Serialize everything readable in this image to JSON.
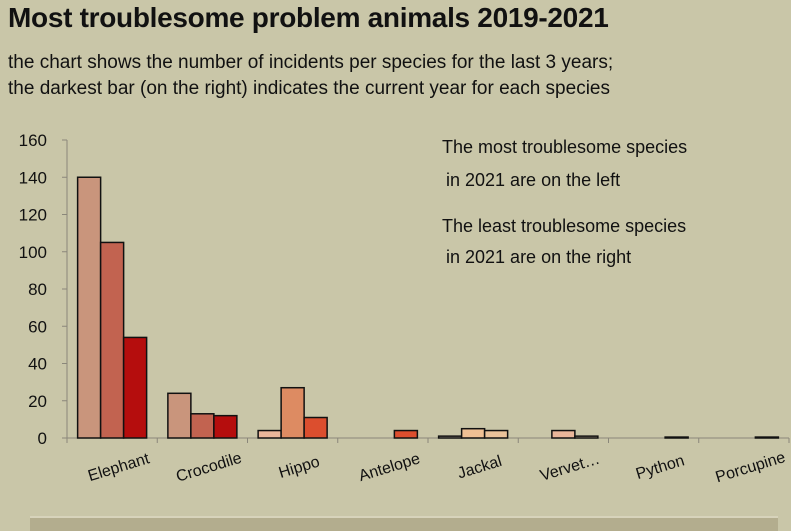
{
  "title": "Most troublesome problem animals 2019-2021",
  "subtitle_line1": "the chart shows the number of incidents per species for the last 3 years;",
  "subtitle_line2": "the darkest bar (on the right) indicates the current year for each species",
  "annotations": [
    {
      "line1": "The most troublesome species",
      "line2": "in 2021 are on the left"
    },
    {
      "line1": "The least troublesome species",
      "line2": "in 2021 are on the right"
    }
  ],
  "chart_data": {
    "type": "bar",
    "categories": [
      "Elephant",
      "Crocodile",
      "Hippo",
      "Antelope",
      "Jackal",
      "Vervet…",
      "Python",
      "Porcupine"
    ],
    "series": [
      {
        "values": [
          140,
          24,
          4,
          0,
          1,
          0,
          0,
          0
        ],
        "color": "#c9957c"
      },
      {
        "values": [
          105,
          13,
          27,
          0,
          5,
          4,
          0,
          0
        ],
        "color": "#c26350"
      },
      {
        "values": [
          54,
          12,
          11,
          4,
          4,
          1,
          0.5,
          0.5
        ],
        "color": "#b50d0d"
      }
    ],
    "series_colors_by_category": [
      [
        "#c9957c",
        "#c26350",
        "#b50d0d"
      ],
      [
        "#c9957c",
        "#c26350",
        "#b50d0d"
      ],
      [
        "#e9b69a",
        "#dd8b62",
        "#dc4e2e"
      ],
      [
        "#e9b69a",
        "#dd8b62",
        "#dc4e2e"
      ],
      [
        "#b7ae9c",
        "#efc094",
        "#e9c29a"
      ],
      [
        "#c9c6a8",
        "#e9b69a",
        "#c9b6a0"
      ],
      [
        "#c9c6a8",
        "#c9c6a8",
        "#a4a08c"
      ],
      [
        "#c9c6a8",
        "#c9c6a8",
        "#a4a08c"
      ]
    ],
    "ylim": [
      0,
      160
    ],
    "yticks": [
      0,
      20,
      40,
      60,
      80,
      100,
      120,
      140,
      160
    ],
    "grid": false,
    "legend": "none",
    "xlabel": "",
    "ylabel": ""
  }
}
